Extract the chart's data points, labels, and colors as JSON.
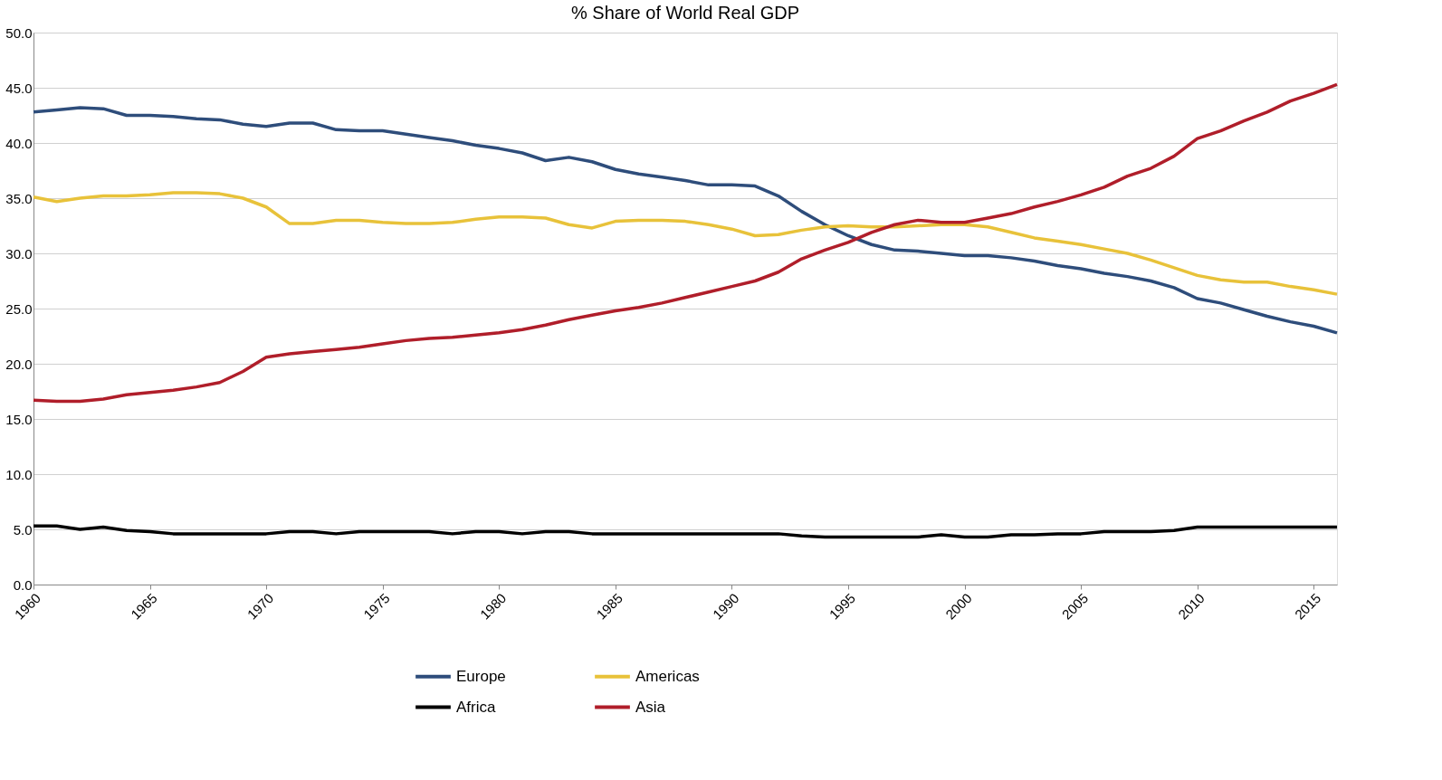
{
  "chart_data": {
    "type": "line",
    "title": "% Share of World Real GDP",
    "x": [
      1960,
      1961,
      1962,
      1963,
      1964,
      1965,
      1966,
      1967,
      1968,
      1969,
      1970,
      1971,
      1972,
      1973,
      1974,
      1975,
      1976,
      1977,
      1978,
      1979,
      1980,
      1981,
      1982,
      1983,
      1984,
      1985,
      1986,
      1987,
      1988,
      1989,
      1990,
      1991,
      1992,
      1993,
      1994,
      1995,
      1996,
      1997,
      1998,
      1999,
      2000,
      2001,
      2002,
      2003,
      2004,
      2005,
      2006,
      2007,
      2008,
      2009,
      2010,
      2011,
      2012,
      2013,
      2014,
      2015,
      2016
    ],
    "series": [
      {
        "name": "Europe",
        "color": "#2e4d7b",
        "values": [
          42.8,
          43.0,
          43.2,
          43.1,
          42.5,
          42.5,
          42.4,
          42.2,
          42.1,
          41.7,
          41.5,
          41.8,
          41.8,
          41.2,
          41.1,
          41.1,
          40.8,
          40.5,
          40.2,
          39.8,
          39.5,
          39.1,
          38.4,
          38.7,
          38.3,
          37.6,
          37.2,
          36.9,
          36.6,
          36.2,
          36.2,
          36.1,
          35.2,
          33.8,
          32.6,
          31.6,
          30.8,
          30.3,
          30.2,
          30.0,
          29.8,
          29.8,
          29.6,
          29.3,
          28.9,
          28.6,
          28.2,
          27.9,
          27.5,
          26.9,
          25.9,
          25.5,
          24.9,
          24.3,
          23.8,
          23.4,
          22.8
        ]
      },
      {
        "name": "Americas",
        "color": "#e8c23a",
        "values": [
          35.1,
          34.7,
          35.0,
          35.2,
          35.2,
          35.3,
          35.5,
          35.5,
          35.4,
          35.0,
          34.2,
          32.7,
          32.7,
          33.0,
          33.0,
          32.8,
          32.7,
          32.7,
          32.8,
          33.1,
          33.3,
          33.3,
          33.2,
          32.6,
          32.3,
          32.9,
          33.0,
          33.0,
          32.9,
          32.6,
          32.2,
          31.6,
          31.7,
          32.1,
          32.4,
          32.5,
          32.4,
          32.4,
          32.5,
          32.6,
          32.6,
          32.4,
          31.9,
          31.4,
          31.1,
          30.8,
          30.4,
          30.0,
          29.4,
          28.7,
          28.0,
          27.6,
          27.4,
          27.4,
          27.0,
          26.7,
          26.3
        ]
      },
      {
        "name": "Africa",
        "color": "#000000",
        "values": [
          5.3,
          5.3,
          5.0,
          5.2,
          4.9,
          4.8,
          4.6,
          4.6,
          4.6,
          4.6,
          4.6,
          4.8,
          4.8,
          4.6,
          4.8,
          4.8,
          4.8,
          4.8,
          4.6,
          4.8,
          4.8,
          4.6,
          4.8,
          4.8,
          4.6,
          4.6,
          4.6,
          4.6,
          4.6,
          4.6,
          4.6,
          4.6,
          4.6,
          4.4,
          4.3,
          4.3,
          4.3,
          4.3,
          4.3,
          4.5,
          4.3,
          4.3,
          4.5,
          4.5,
          4.6,
          4.6,
          4.8,
          4.8,
          4.8,
          4.9,
          5.2,
          5.2,
          5.2,
          5.2,
          5.2,
          5.2,
          5.2
        ]
      },
      {
        "name": "Asia",
        "color": "#b01e2a",
        "values": [
          16.7,
          16.6,
          16.6,
          16.8,
          17.2,
          17.4,
          17.6,
          17.9,
          18.3,
          19.3,
          20.6,
          20.9,
          21.1,
          21.3,
          21.5,
          21.8,
          22.1,
          22.3,
          22.4,
          22.6,
          22.8,
          23.1,
          23.5,
          24.0,
          24.4,
          24.8,
          25.1,
          25.5,
          26.0,
          26.5,
          27.0,
          27.5,
          28.3,
          29.5,
          30.3,
          31.0,
          31.9,
          32.6,
          33.0,
          32.8,
          32.8,
          33.2,
          33.6,
          34.2,
          34.7,
          35.3,
          36.0,
          37.0,
          37.7,
          38.8,
          40.4,
          41.1,
          42.0,
          42.8,
          43.8,
          44.5,
          45.3
        ]
      }
    ],
    "xlim": [
      1960,
      2016
    ],
    "xticks": [
      1960,
      1965,
      1970,
      1975,
      1980,
      1985,
      1990,
      1995,
      2000,
      2005,
      2010,
      2015
    ],
    "ylim": [
      0,
      50
    ],
    "yticks": [
      {
        "value": 0,
        "label": "0.0"
      },
      {
        "value": 5,
        "label": "5.0"
      },
      {
        "value": 10,
        "label": "10.0"
      },
      {
        "value": 15,
        "label": "15.0"
      },
      {
        "value": 20,
        "label": "20.0"
      },
      {
        "value": 25,
        "label": "25.0"
      },
      {
        "value": 30,
        "label": "30.0"
      },
      {
        "value": 35,
        "label": "35.0"
      },
      {
        "value": 40,
        "label": "40.0"
      },
      {
        "value": 45,
        "label": "45.0"
      },
      {
        "value": 50,
        "label": "50.0"
      }
    ],
    "grid": "y",
    "legend": "bottom",
    "marker": "none",
    "line_style": "solid"
  }
}
